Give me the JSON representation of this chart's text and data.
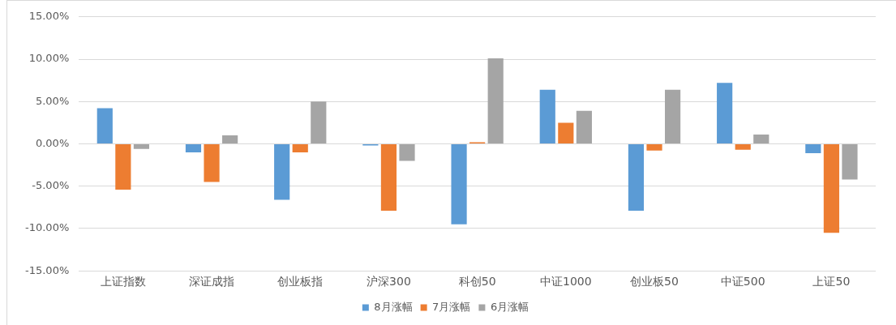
{
  "chart_data": {
    "type": "bar",
    "categories": [
      "上证指数",
      "深证成指",
      "创业板指",
      "沪深300",
      "科创50",
      "中证1000",
      "创业板50",
      "中证500",
      "上证50"
    ],
    "series": [
      {
        "name": "8月涨幅",
        "color": "#5b9bd5",
        "values": [
          4.2,
          -1.0,
          -6.6,
          -0.2,
          -9.5,
          6.4,
          -7.9,
          7.2,
          -1.1
        ]
      },
      {
        "name": "7月涨幅",
        "color": "#ed7d31",
        "values": [
          -5.4,
          -4.5,
          -1.0,
          -7.9,
          0.2,
          2.5,
          -0.8,
          -0.7,
          -10.5
        ]
      },
      {
        "name": "6月涨幅",
        "color": "#a5a5a5",
        "values": [
          -0.6,
          1.0,
          5.0,
          -2.0,
          10.1,
          3.9,
          6.4,
          1.1,
          -4.2
        ]
      }
    ],
    "ylim": [
      -15,
      15
    ],
    "yticks": [
      {
        "value": -15,
        "label": "-15.00%"
      },
      {
        "value": -10,
        "label": "-10.00%"
      },
      {
        "value": -5,
        "label": "-5.00%"
      },
      {
        "value": 0,
        "label": "0.00%"
      },
      {
        "value": 5,
        "label": "5.00%"
      },
      {
        "value": 10,
        "label": "10.00%"
      },
      {
        "value": 15,
        "label": "15.00%"
      }
    ],
    "grid": "y",
    "legend": "bottom"
  }
}
